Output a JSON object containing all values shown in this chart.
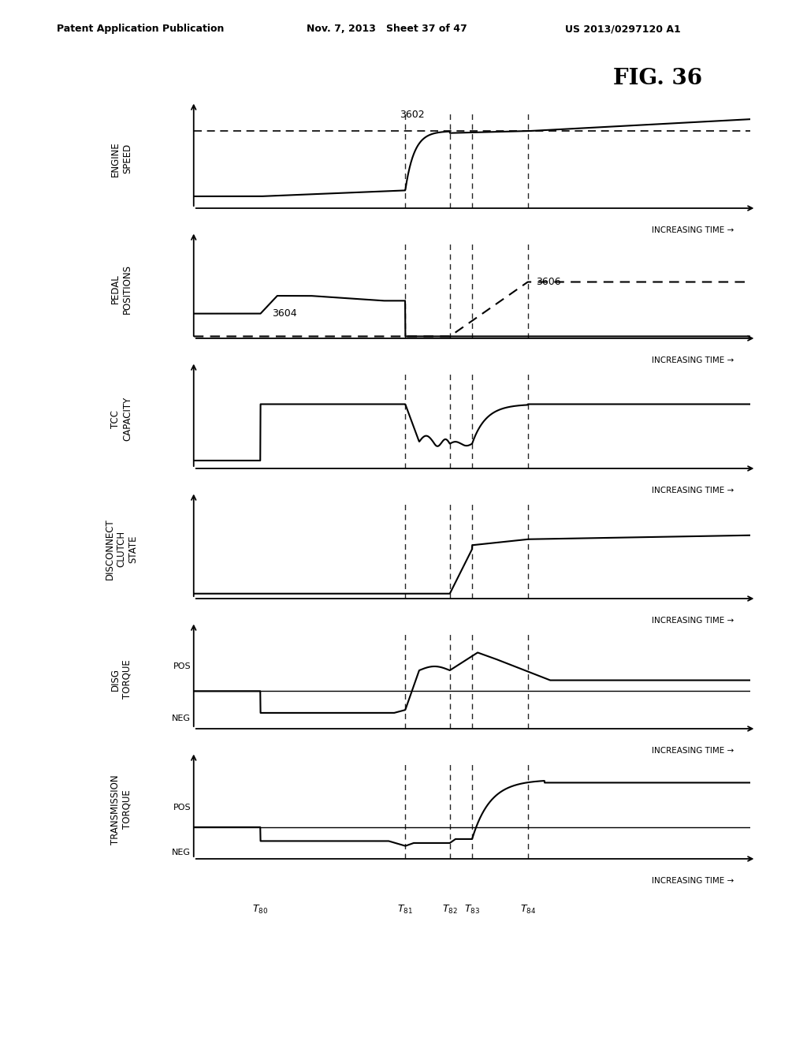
{
  "fig_label": "FIG. 36",
  "header_left": "Patent Application Publication",
  "header_center": "Nov. 7, 2013   Sheet 37 of 47",
  "header_right": "US 2013/0297120 A1",
  "background_color": "#ffffff",
  "text_color": "#000000",
  "panels": [
    {
      "ylabel": "ENGINE\nSPEED"
    },
    {
      "ylabel": "PEDAL\nPOSITIONS"
    },
    {
      "ylabel": "TCC\nCAPACITY"
    },
    {
      "ylabel": "DISCONNECT\nCLUTCH\nSTATE"
    },
    {
      "ylabel": "DISG\nTORQUE"
    },
    {
      "ylabel": "TRANSMISSION\nTORQUE"
    }
  ],
  "t80": 0.12,
  "t81": 0.38,
  "t82": 0.46,
  "t83": 0.5,
  "t84": 0.6,
  "increasing_time_label": "INCREASING TIME",
  "label_3602": "3602",
  "label_3604": "3604",
  "label_3606": "3606"
}
